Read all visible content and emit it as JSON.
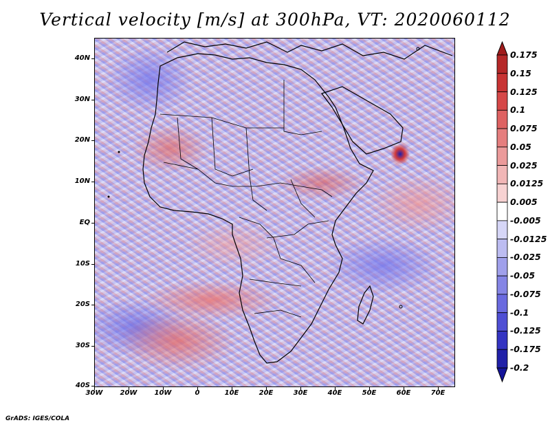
{
  "title": "Vertical velocity [m/s] at 300hPa, VT: 2020060112",
  "map": {
    "region": "Africa",
    "lat_labels": [
      "40N",
      "30N",
      "20N",
      "10N",
      "EQ",
      "10S",
      "20S",
      "30S",
      "40S"
    ],
    "lon_labels": [
      "30W",
      "20W",
      "10W",
      "0",
      "10E",
      "20E",
      "30E",
      "40E",
      "50E",
      "60E",
      "70E"
    ]
  },
  "colorbar": {
    "labels": [
      "0.175",
      "0.15",
      "0.125",
      "0.1",
      "0.075",
      "0.05",
      "0.025",
      "0.0125",
      "0.005",
      "-0.005",
      "-0.0125",
      "-0.025",
      "-0.05",
      "-0.075",
      "-0.1",
      "-0.125",
      "-0.175",
      "-0.2"
    ],
    "colors": [
      "#a01c1c",
      "#b52828",
      "#c83434",
      "#d64848",
      "#de6262",
      "#e57e7e",
      "#eb9a9a",
      "#f1b6b6",
      "#f7d2d2",
      "#ffffff",
      "#d6d6f7",
      "#bcbcf1",
      "#a0a0eb",
      "#8585e5",
      "#6a6adf",
      "#4f4fd4",
      "#3434c2",
      "#2020a8",
      "#14149a"
    ]
  },
  "credit": "GrADS: IGES/COLA"
}
